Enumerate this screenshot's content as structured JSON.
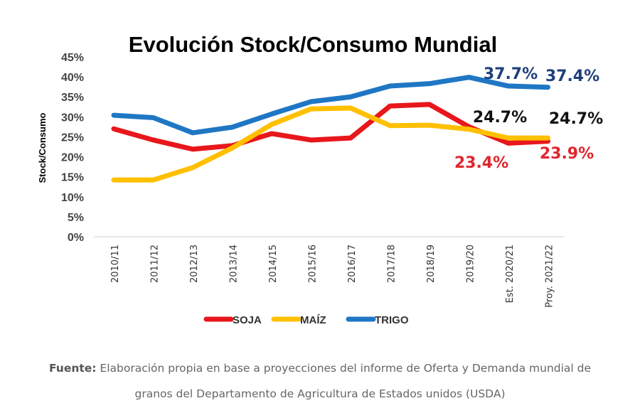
{
  "chart_data": {
    "type": "line",
    "title": "Evolución Stock/Consumo Mundial",
    "xlabel": "",
    "ylabel": "Stock/Consumo",
    "ylim": [
      0,
      45
    ],
    "yticks": [
      "0%",
      "5%",
      "10%",
      "15%",
      "20%",
      "25%",
      "30%",
      "35%",
      "40%",
      "45%"
    ],
    "grid": false,
    "legend_position": "bottom",
    "categories": [
      "2010/11",
      "2011/12",
      "2012/13",
      "2013/14",
      "2014/15",
      "2015/16",
      "2016/17",
      "2017/18",
      "2018/19",
      "2019/20",
      "Est. 2020/21",
      "Proy. 2021/22"
    ],
    "series": [
      {
        "name": "SOJA",
        "color": "#e8171b",
        "values": [
          27.0,
          24.2,
          21.9,
          22.8,
          25.8,
          24.2,
          24.7,
          32.7,
          33.1,
          27.5,
          23.4,
          23.9
        ]
      },
      {
        "name": "MAÍZ",
        "color": "#ffc000",
        "values": [
          14.2,
          14.2,
          17.3,
          22.2,
          28.1,
          32.0,
          32.2,
          27.8,
          27.9,
          26.9,
          24.7,
          24.7
        ]
      },
      {
        "name": "TRIGO",
        "color": "#1f77c4",
        "values": [
          30.4,
          29.8,
          26.0,
          27.4,
          30.7,
          33.8,
          35.0,
          37.7,
          38.3,
          39.9,
          37.7,
          37.4
        ]
      }
    ],
    "annotations": [
      {
        "text": "37.7%",
        "color": "#1f3f7a"
      },
      {
        "text": "37.4%",
        "color": "#1f3f7a"
      },
      {
        "text": "24.7%",
        "color": "#111111"
      },
      {
        "text": "24.7%",
        "color": "#111111"
      },
      {
        "text": "23.4%",
        "color": "#e0262c"
      },
      {
        "text": "23.9%",
        "color": "#e0262c"
      }
    ]
  },
  "footer": {
    "label": "Fuente:",
    "line1": " Elaboración propia en base a proyecciones del informe de Oferta y Demanda mundial de",
    "line2": "granos del Departamento de Agricultura de Estados unidos (USDA)"
  }
}
